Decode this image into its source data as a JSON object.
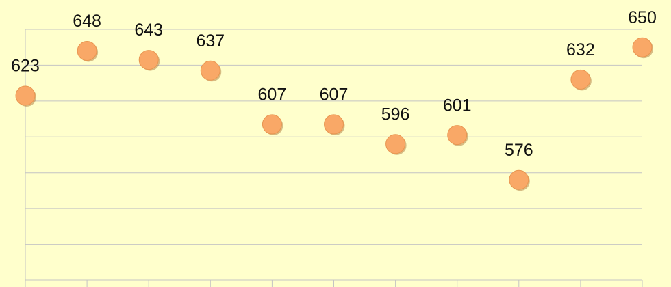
{
  "chart_data": {
    "type": "line",
    "categories": [
      null,
      null,
      null,
      null,
      null,
      null,
      null,
      null,
      null,
      null,
      null
    ],
    "series": [
      {
        "color": "#e8a317",
        "marker_color": "#f9a867",
        "values": [
          623,
          648,
          643,
          637,
          607,
          607,
          596,
          601,
          576,
          632,
          650
        ]
      }
    ],
    "ylim": [
      520,
      660
    ],
    "yticks": [
      520,
      540,
      560,
      580,
      600,
      620,
      640,
      660
    ],
    "grid": true
  }
}
